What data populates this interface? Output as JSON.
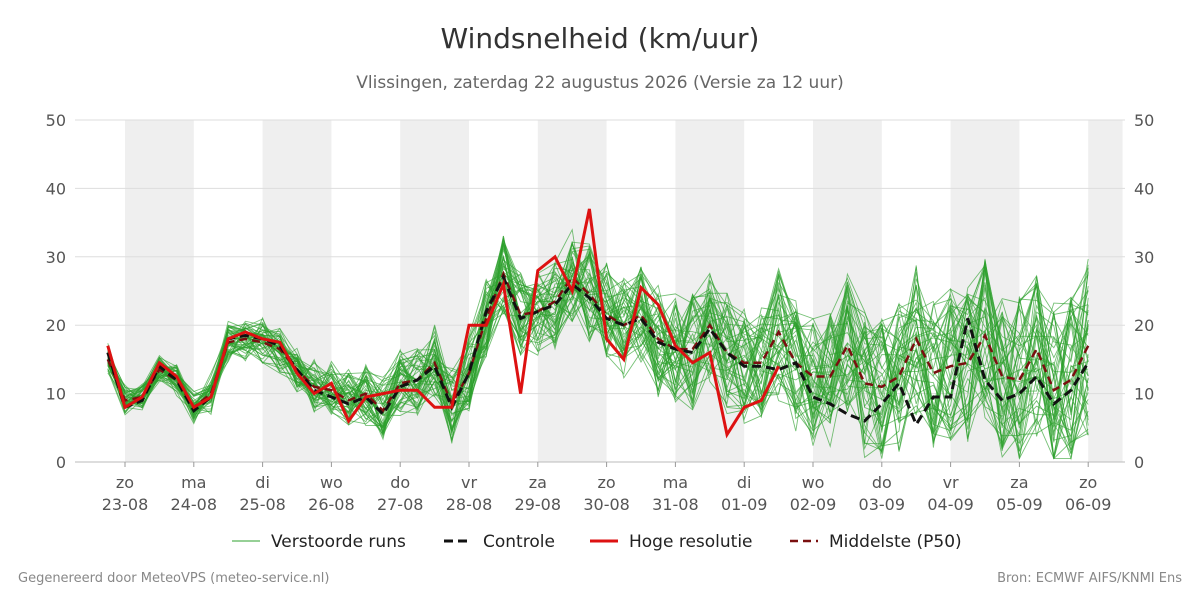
{
  "header": {
    "title": "Windsnelheid (km/uur)",
    "subtitle": "Vlissingen, zaterdag 22 augustus 2026 (Versie za 12 uur)"
  },
  "footer": {
    "left": "Gegenereerd door MeteoVPS (meteo-service.nl)",
    "right": "Bron: ECMWF AIFS/KNMI Ens"
  },
  "colors": {
    "ensemble": "#2ca02c",
    "control": "#111111",
    "high_res": "#dd1111",
    "median": "#7a0f0f",
    "night_band": "#efefef"
  },
  "chart_data": {
    "type": "line",
    "title": "Windsnelheid (km/uur)",
    "ylim": [
      0,
      50
    ],
    "yticks": [
      0,
      10,
      20,
      30,
      40,
      50
    ],
    "xlim": [
      -0.25,
      14.0
    ],
    "x_unit": "days from 23-08 00:00",
    "grid": true,
    "legend_position": "bottom",
    "date_ticks": [
      {
        "day": "zo",
        "date": "23-08"
      },
      {
        "day": "ma",
        "date": "24-08"
      },
      {
        "day": "di",
        "date": "25-08"
      },
      {
        "day": "wo",
        "date": "26-08"
      },
      {
        "day": "do",
        "date": "27-08"
      },
      {
        "day": "vr",
        "date": "28-08"
      },
      {
        "day": "za",
        "date": "29-08"
      },
      {
        "day": "zo",
        "date": "30-08"
      },
      {
        "day": "ma",
        "date": "31-08"
      },
      {
        "day": "di",
        "date": "01-09"
      },
      {
        "day": "wo",
        "date": "02-09"
      },
      {
        "day": "do",
        "date": "03-09"
      },
      {
        "day": "vr",
        "date": "04-09"
      },
      {
        "day": "za",
        "date": "05-09"
      },
      {
        "day": "zo",
        "date": "06-09"
      }
    ],
    "weekend_bands": [
      [
        0,
        1
      ],
      [
        2,
        3
      ],
      [
        4,
        5
      ],
      [
        6,
        7
      ],
      [
        8,
        9
      ],
      [
        10,
        11
      ],
      [
        12,
        13
      ],
      [
        14,
        14.5
      ]
    ],
    "legend": [
      "Verstoorde runs",
      "Controle",
      "Hoge resolutie",
      "Middelste (P50)"
    ],
    "control": {
      "name": "Controle",
      "x": [
        -0.25,
        0.0,
        0.25,
        0.5,
        0.75,
        1.0,
        1.25,
        1.5,
        1.75,
        2.0,
        2.25,
        2.5,
        2.75,
        3.0,
        3.25,
        3.5,
        3.75,
        4.0,
        4.25,
        4.5,
        4.75,
        5.0,
        5.25,
        5.5,
        5.75,
        6.0,
        6.25,
        6.5,
        6.75,
        7.0,
        7.25,
        7.5,
        7.75,
        8.0,
        8.25,
        8.5,
        8.75,
        9.0,
        9.25,
        9.5,
        9.75,
        10.0,
        10.25,
        10.5,
        10.75,
        11.0,
        11.25,
        11.5,
        11.75,
        12.0,
        12.25,
        12.5,
        12.75,
        13.0,
        13.25,
        13.5,
        13.75,
        14.0
      ],
      "values": [
        16,
        8,
        9,
        14,
        12,
        7.5,
        9.5,
        18,
        18.5,
        18,
        17,
        13.5,
        10.5,
        9.5,
        8.5,
        9.5,
        7,
        11,
        12,
        14,
        8,
        13,
        22,
        27,
        21,
        22,
        23,
        26,
        24,
        21,
        20,
        21,
        17.5,
        16.5,
        16,
        19.5,
        16,
        14,
        14,
        13.5,
        14.5,
        9.5,
        8.5,
        7,
        6,
        8.5,
        11.5,
        5.5,
        9.5,
        9.5,
        21,
        12,
        9,
        10,
        12.5,
        8.5,
        10.5,
        14.5
      ]
    },
    "high_res": {
      "name": "Hoge resolutie",
      "x": [
        -0.25,
        0.0,
        0.25,
        0.5,
        0.75,
        1.0,
        1.25,
        1.5,
        1.75,
        2.0,
        2.25,
        2.5,
        2.75,
        3.0,
        3.25,
        3.5,
        3.75,
        4.0,
        4.25,
        4.5,
        4.75,
        5.0,
        5.25,
        5.5,
        5.75,
        6.0,
        6.25,
        6.5,
        6.75,
        7.0,
        7.25,
        7.5,
        7.75,
        8.0,
        8.25,
        8.5,
        8.75,
        9.0,
        9.25,
        9.5
      ],
      "values": [
        17,
        8,
        9.5,
        14.5,
        12.5,
        8,
        9.5,
        18,
        19,
        18,
        17.5,
        13,
        10,
        11.5,
        6,
        9.5,
        10,
        10.5,
        10.5,
        8,
        8,
        20,
        20,
        26,
        10,
        28,
        30,
        25,
        37,
        18,
        15,
        25.5,
        23,
        17,
        14.5,
        16,
        4,
        8,
        9,
        14
      ]
    },
    "median": {
      "name": "Middelste (P50)",
      "x": [
        -0.25,
        0.0,
        0.25,
        0.5,
        0.75,
        1.0,
        1.25,
        1.5,
        1.75,
        2.0,
        2.25,
        2.5,
        2.75,
        3.0,
        3.25,
        3.5,
        3.75,
        4.0,
        4.25,
        4.5,
        4.75,
        5.0,
        5.25,
        5.5,
        5.75,
        6.0,
        6.25,
        6.5,
        6.75,
        7.0,
        7.25,
        7.5,
        7.75,
        8.0,
        8.25,
        8.5,
        8.75,
        9.0,
        9.25,
        9.5,
        9.75,
        10.0,
        10.25,
        10.5,
        10.75,
        11.0,
        11.25,
        11.5,
        11.75,
        12.0,
        12.25,
        12.5,
        12.75,
        13.0,
        13.25,
        13.5,
        13.75,
        14.0
      ],
      "values": [
        15,
        9,
        9.5,
        13.5,
        12,
        8,
        10,
        17.5,
        18,
        17.5,
        16.5,
        13.5,
        11,
        10.5,
        9,
        10,
        7.5,
        11.5,
        12,
        14.5,
        8.5,
        13,
        21,
        27.5,
        21.5,
        22,
        23.5,
        27,
        24.5,
        21.5,
        20,
        21.5,
        18,
        16.5,
        16.5,
        20,
        16,
        14.5,
        14.5,
        19,
        14.5,
        12.5,
        12.5,
        17,
        11.5,
        11,
        12.5,
        18,
        13,
        14,
        14.5,
        18.5,
        12.5,
        12,
        16.5,
        10.5,
        12,
        17
      ]
    }
  }
}
